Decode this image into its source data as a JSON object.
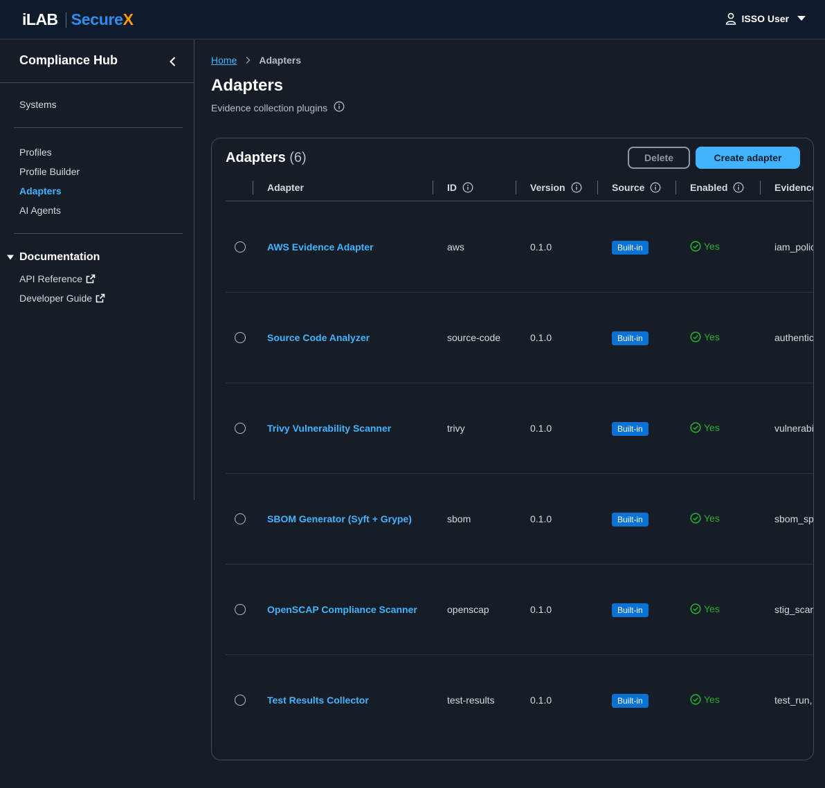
{
  "brand": {
    "part1": "iLAB",
    "part2": "Secure",
    "part3": "X"
  },
  "user": {
    "name": "ISSO User"
  },
  "sidebar": {
    "title": "Compliance Hub",
    "items": [
      {
        "label": "Systems"
      },
      {
        "label": "Profiles"
      },
      {
        "label": "Profile Builder"
      },
      {
        "label": "Adapters",
        "active": true
      },
      {
        "label": "AI Agents"
      }
    ],
    "documentation": {
      "label": "Documentation",
      "links": [
        {
          "label": "API Reference"
        },
        {
          "label": "Developer Guide"
        }
      ]
    }
  },
  "breadcrumb": {
    "home": "Home",
    "current": "Adapters"
  },
  "page": {
    "title": "Adapters",
    "description": "Evidence collection plugins"
  },
  "panel": {
    "title": "Adapters",
    "count": "(6)",
    "delete_label": "Delete",
    "create_label": "Create adapter"
  },
  "table": {
    "columns": [
      "Adapter",
      "ID",
      "Version",
      "Source",
      "Enabled",
      "Evidence"
    ],
    "rows": [
      {
        "name": "AWS Evidence Adapter",
        "id": "aws",
        "version": "0.1.0",
        "source": "Built-in",
        "enabled": "Yes",
        "evidence": "iam_policies"
      },
      {
        "name": "Source Code Analyzer",
        "id": "source-code",
        "version": "0.1.0",
        "source": "Built-in",
        "enabled": "Yes",
        "evidence": "authentication"
      },
      {
        "name": "Trivy Vulnerability Scanner",
        "id": "trivy",
        "version": "0.1.0",
        "source": "Built-in",
        "enabled": "Yes",
        "evidence": "vulnerabilities"
      },
      {
        "name": "SBOM Generator (Syft + Grype)",
        "id": "sbom",
        "version": "0.1.0",
        "source": "Built-in",
        "enabled": "Yes",
        "evidence": "sbom_spdx"
      },
      {
        "name": "OpenSCAP Compliance Scanner",
        "id": "openscap",
        "version": "0.1.0",
        "source": "Built-in",
        "enabled": "Yes",
        "evidence": "stig_scan"
      },
      {
        "name": "Test Results Collector",
        "id": "test-results",
        "version": "0.1.0",
        "source": "Built-in",
        "enabled": "Yes",
        "evidence": "test_run,"
      }
    ]
  },
  "colors": {
    "accent": "#42b4ff",
    "success": "#29ad32",
    "badge": "#0972d3",
    "brand_x": "#ff9900"
  }
}
